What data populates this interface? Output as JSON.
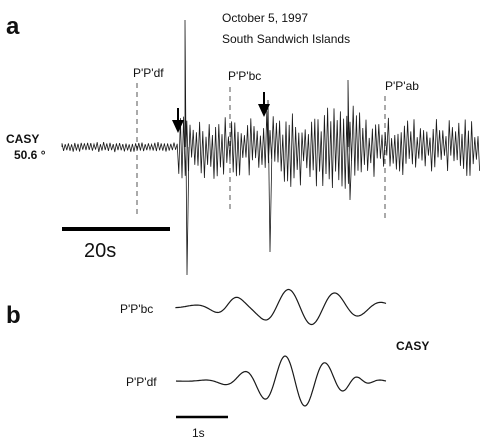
{
  "panel_a": {
    "letter": "a",
    "event_date": "October 5, 1997",
    "event_region": "South Sandwich Islands",
    "station": "CASY",
    "distance": "50.6 °",
    "phase_labels": [
      "P'P'df",
      "P'P'bc",
      "P'P'ab"
    ],
    "scale_label": "20s"
  },
  "panel_b": {
    "letter": "b",
    "trace_labels": [
      "P'P'bc",
      "P'P'df"
    ],
    "station": "CASY",
    "scale_label": "1s"
  }
}
